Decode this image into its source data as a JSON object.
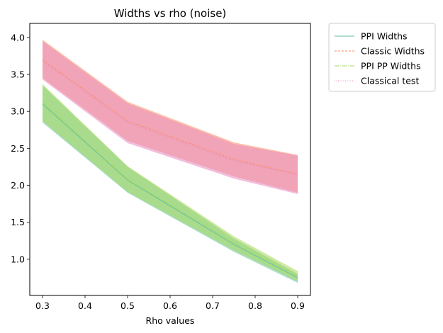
{
  "chart_data": {
    "type": "line",
    "title": "Widths vs rho (noise)",
    "xlabel": "Rho values",
    "ylabel": "",
    "x": [
      0.3,
      0.5,
      0.75,
      0.9
    ],
    "xlim": [
      0.27,
      0.93
    ],
    "ylim": [
      0.51,
      4.19
    ],
    "xticks": [
      "0.3",
      "0.4",
      "0.5",
      "0.6",
      "0.7",
      "0.8",
      "0.9"
    ],
    "yticks": [
      "1.0",
      "1.5",
      "2.0",
      "2.5",
      "3.0",
      "3.5",
      "4.0"
    ],
    "grid": false,
    "legend_position": "outside-top-right",
    "series": [
      {
        "name": "PPI Widths",
        "color": "#66c2a5",
        "style": "solid",
        "values": [
          3.1,
          2.07,
          1.2,
          0.75
        ],
        "lower": [
          2.85,
          1.9,
          1.1,
          0.68
        ],
        "upper": [
          3.35,
          2.25,
          1.28,
          0.8
        ]
      },
      {
        "name": "Classic Widths",
        "color": "#fc8d62",
        "style": "dashed",
        "values": [
          3.7,
          2.87,
          2.35,
          2.15
        ],
        "lower": [
          3.45,
          2.6,
          2.12,
          1.9
        ],
        "upper": [
          3.97,
          3.13,
          2.58,
          2.41
        ]
      },
      {
        "name": "PPI PP Widths",
        "color": "#a6d854",
        "style": "dashdot",
        "values": [
          3.12,
          2.08,
          1.22,
          0.77
        ],
        "lower": [
          2.87,
          1.91,
          1.12,
          0.7
        ],
        "upper": [
          3.37,
          2.26,
          1.31,
          0.84
        ]
      },
      {
        "name": "Classical test",
        "color": "#e78ac3",
        "style": "dotted",
        "values": [
          3.68,
          2.85,
          2.33,
          2.14
        ],
        "lower": [
          3.43,
          2.57,
          2.09,
          1.88
        ],
        "upper": [
          3.95,
          3.11,
          2.56,
          2.4
        ]
      }
    ]
  }
}
